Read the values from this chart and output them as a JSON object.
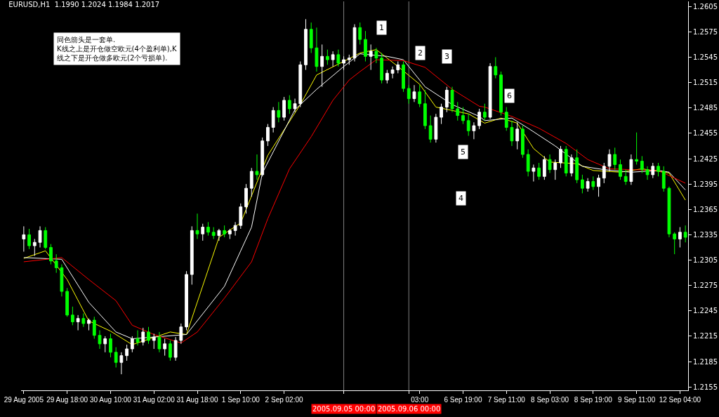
{
  "chart_data": {
    "type": "candlestick",
    "title": "EURUSD,H1  1.1990 1.2024 1.1984 1.2017",
    "categories": [
      "29 Aug 2005",
      null,
      null,
      null,
      null,
      null,
      null,
      null,
      "29 Aug 18:00",
      null,
      null,
      null,
      null,
      null,
      null,
      null,
      "30 Aug 10:00",
      null,
      null,
      null,
      null,
      null,
      null,
      null,
      "31 Aug 02:00",
      null,
      null,
      null,
      null,
      null,
      null,
      null,
      "31 Aug 18:00",
      null,
      null,
      null,
      null,
      null,
      null,
      null,
      "1 Sep 10:00",
      null,
      null,
      null,
      null,
      null,
      null,
      null,
      "2 Sep 02:00",
      null,
      null,
      null,
      null,
      null,
      null,
      null,
      null,
      null,
      null,
      "2005.09.05 00:00",
      null,
      null,
      null,
      null,
      null,
      null,
      null,
      null,
      null,
      null,
      null,
      "2005.09.06 00:00",
      null,
      "03:00",
      null,
      null,
      null,
      null,
      null,
      null,
      null,
      "6 Sep 19:00",
      null,
      null,
      null,
      null,
      null,
      null,
      null,
      "7 Sep 11:00",
      null,
      null,
      null,
      null,
      null,
      null,
      null,
      "8 Sep 03:00",
      null,
      null,
      null,
      null,
      null,
      null,
      null,
      "8 Sep 19:00",
      null,
      null,
      null,
      null,
      null,
      null,
      null,
      "9 Sep 11:00",
      null,
      null,
      null,
      null,
      null,
      null,
      null,
      "12 Sep 04:00",
      null
    ],
    "ohlc": [
      [
        1.233,
        1.2345,
        1.2315,
        1.2335
      ],
      [
        1.2335,
        1.2342,
        1.2318,
        1.2322
      ],
      [
        1.2322,
        1.233,
        1.231,
        1.2326
      ],
      [
        1.2326,
        1.2345,
        1.232,
        1.234
      ],
      [
        1.234,
        1.2344,
        1.2318,
        1.232
      ],
      [
        1.232,
        1.2324,
        1.23,
        1.2304
      ],
      [
        1.2304,
        1.2312,
        1.229,
        1.2296
      ],
      [
        1.2296,
        1.23,
        1.2262,
        1.2268
      ],
      [
        1.2268,
        1.2272,
        1.2238,
        1.224
      ],
      [
        1.224,
        1.225,
        1.2228,
        1.2232
      ],
      [
        1.2232,
        1.224,
        1.2222,
        1.2236
      ],
      [
        1.2236,
        1.2242,
        1.2226,
        1.223
      ],
      [
        1.223,
        1.2236,
        1.2222,
        1.2234
      ],
      [
        1.2234,
        1.2238,
        1.2212,
        1.2216
      ],
      [
        1.2216,
        1.2222,
        1.22,
        1.2206
      ],
      [
        1.2206,
        1.2215,
        1.2196,
        1.2212
      ],
      [
        1.2212,
        1.2218,
        1.219,
        1.2196
      ],
      [
        1.2196,
        1.2202,
        1.2178,
        1.2184
      ],
      [
        1.2184,
        1.2196,
        1.217,
        1.2192
      ],
      [
        1.2192,
        1.2205,
        1.2186,
        1.22
      ],
      [
        1.22,
        1.2215,
        1.2196,
        1.2212
      ],
      [
        1.2212,
        1.2222,
        1.2204,
        1.2208
      ],
      [
        1.2208,
        1.2225,
        1.2204,
        1.222
      ],
      [
        1.222,
        1.2226,
        1.2206,
        1.221
      ],
      [
        1.221,
        1.2218,
        1.22,
        1.2214
      ],
      [
        1.2214,
        1.222,
        1.2196,
        1.22
      ],
      [
        1.22,
        1.2212,
        1.2192,
        1.2206
      ],
      [
        1.2206,
        1.221,
        1.2186,
        1.219
      ],
      [
        1.219,
        1.2214,
        1.2186,
        1.221
      ],
      [
        1.221,
        1.223,
        1.2206,
        1.2226
      ],
      [
        1.2226,
        1.2292,
        1.2222,
        1.2288
      ],
      [
        1.2288,
        1.2345,
        1.2276,
        1.234
      ],
      [
        1.234,
        1.236,
        1.233,
        1.2336
      ],
      [
        1.2336,
        1.2348,
        1.2328,
        1.2344
      ],
      [
        1.2344,
        1.235,
        1.2334,
        1.2338
      ],
      [
        1.2338,
        1.2344,
        1.233,
        1.2334
      ],
      [
        1.2334,
        1.2342,
        1.2328,
        1.234
      ],
      [
        1.234,
        1.2346,
        1.2332,
        1.2336
      ],
      [
        1.2336,
        1.2342,
        1.233,
        1.234
      ],
      [
        1.234,
        1.235,
        1.2334,
        1.2346
      ],
      [
        1.2346,
        1.2372,
        1.2342,
        1.2368
      ],
      [
        1.2368,
        1.2395,
        1.236,
        1.239
      ],
      [
        1.239,
        1.2414,
        1.238,
        1.241
      ],
      [
        1.241,
        1.243,
        1.24,
        1.2406
      ],
      [
        1.2406,
        1.245,
        1.2404,
        1.2446
      ],
      [
        1.2446,
        1.2466,
        1.244,
        1.2462
      ],
      [
        1.2462,
        1.2486,
        1.2456,
        1.2482
      ],
      [
        1.2482,
        1.2492,
        1.2468,
        1.2474
      ],
      [
        1.2474,
        1.2498,
        1.247,
        1.2494
      ],
      [
        1.2494,
        1.25,
        1.2478,
        1.2484
      ],
      [
        1.2484,
        1.2496,
        1.248,
        1.249
      ],
      [
        1.249,
        1.254,
        1.2486,
        1.2536
      ],
      [
        1.2536,
        1.259,
        1.253,
        1.2578
      ],
      [
        1.2578,
        1.2586,
        1.255,
        1.2556
      ],
      [
        1.2556,
        1.258,
        1.2528,
        1.2534
      ],
      [
        1.2534,
        1.256,
        1.251,
        1.2546
      ],
      [
        1.2546,
        1.2554,
        1.2536,
        1.2542
      ],
      [
        1.2542,
        1.2552,
        1.2534,
        1.2548
      ],
      [
        1.2548,
        1.2554,
        1.2534,
        1.2538
      ],
      [
        1.2538,
        1.2546,
        1.253,
        1.2542
      ],
      [
        1.2542,
        1.2548,
        1.2536,
        1.2544
      ],
      [
        1.2544,
        1.2584,
        1.254,
        1.258
      ],
      [
        1.258,
        1.2586,
        1.256,
        1.2566
      ],
      [
        1.2566,
        1.2576,
        1.254,
        1.2546
      ],
      [
        1.2546,
        1.256,
        1.253,
        1.2552
      ],
      [
        1.2552,
        1.2556,
        1.2538,
        1.2544
      ],
      [
        1.2544,
        1.255,
        1.2514,
        1.2518
      ],
      [
        1.2518,
        1.253,
        1.2514,
        1.2526
      ],
      [
        1.2526,
        1.2534,
        1.252,
        1.253
      ],
      [
        1.253,
        1.254,
        1.2526,
        1.2536
      ],
      [
        1.2536,
        1.254,
        1.2504,
        1.2508
      ],
      [
        1.2508,
        1.2512,
        1.249,
        1.2496
      ],
      [
        1.2496,
        1.2512,
        1.2492,
        1.2504
      ],
      [
        1.2504,
        1.2512,
        1.2486,
        1.249
      ],
      [
        1.249,
        1.2506,
        1.246,
        1.2464
      ],
      [
        1.2464,
        1.2476,
        1.2444,
        1.2448
      ],
      [
        1.2448,
        1.2478,
        1.2444,
        1.2474
      ],
      [
        1.2474,
        1.249,
        1.2466,
        1.2486
      ],
      [
        1.2486,
        1.251,
        1.248,
        1.2506
      ],
      [
        1.2506,
        1.251,
        1.248,
        1.2484
      ],
      [
        1.2484,
        1.2492,
        1.247,
        1.2476
      ],
      [
        1.2476,
        1.2486,
        1.2466,
        1.247
      ],
      [
        1.247,
        1.2478,
        1.2452,
        1.2458
      ],
      [
        1.2458,
        1.2468,
        1.2448,
        1.2464
      ],
      [
        1.2464,
        1.2484,
        1.246,
        1.248
      ],
      [
        1.248,
        1.249,
        1.247,
        1.2474
      ],
      [
        1.2474,
        1.2538,
        1.2472,
        1.2534
      ],
      [
        1.2534,
        1.2545,
        1.252,
        1.2524
      ],
      [
        1.2524,
        1.2528,
        1.2476,
        1.248
      ],
      [
        1.248,
        1.2486,
        1.2458,
        1.2462
      ],
      [
        1.2462,
        1.247,
        1.244,
        1.2446
      ],
      [
        1.2446,
        1.2468,
        1.2436,
        1.246
      ],
      [
        1.246,
        1.2464,
        1.2426,
        1.243
      ],
      [
        1.243,
        1.2436,
        1.2404,
        1.241
      ],
      [
        1.241,
        1.2418,
        1.2398,
        1.2414
      ],
      [
        1.2414,
        1.242,
        1.24,
        1.2404
      ],
      [
        1.2404,
        1.2428,
        1.24,
        1.2424
      ],
      [
        1.2424,
        1.243,
        1.2408,
        1.2412
      ],
      [
        1.2412,
        1.2424,
        1.24,
        1.242
      ],
      [
        1.242,
        1.244,
        1.2414,
        1.2436
      ],
      [
        1.2436,
        1.244,
        1.2404,
        1.2408
      ],
      [
        1.2408,
        1.243,
        1.2404,
        1.2426
      ],
      [
        1.2426,
        1.2436,
        1.2396,
        1.24
      ],
      [
        1.24,
        1.2406,
        1.2384,
        1.239
      ],
      [
        1.239,
        1.2402,
        1.2386,
        1.2398
      ],
      [
        1.2398,
        1.2404,
        1.2388,
        1.2392
      ],
      [
        1.2392,
        1.2406,
        1.238,
        1.2402
      ],
      [
        1.2402,
        1.242,
        1.2396,
        1.2416
      ],
      [
        1.2416,
        1.2436,
        1.241,
        1.243
      ],
      [
        1.243,
        1.2438,
        1.2412,
        1.2418
      ],
      [
        1.2418,
        1.2424,
        1.24,
        1.2404
      ],
      [
        1.2404,
        1.2412,
        1.2394,
        1.2398
      ],
      [
        1.2398,
        1.243,
        1.2394,
        1.2424
      ],
      [
        1.2424,
        1.2456,
        1.2418,
        1.2422
      ],
      [
        1.2422,
        1.2428,
        1.2408,
        1.2412
      ],
      [
        1.2412,
        1.2416,
        1.24,
        1.2406
      ],
      [
        1.2406,
        1.242,
        1.2402,
        1.2416
      ],
      [
        1.2416,
        1.242,
        1.2404,
        1.241
      ],
      [
        1.241,
        1.2416,
        1.2386,
        1.239
      ],
      [
        1.239,
        1.2392,
        1.2332,
        1.2336
      ],
      [
        1.2336,
        1.2338,
        1.2312,
        1.233
      ],
      [
        1.233,
        1.2344,
        1.232,
        1.2338
      ],
      [
        1.2338,
        1.2346,
        1.2326,
        1.2332
      ]
    ],
    "colors": [
      "#ffffff",
      "#00ff00",
      "#ffffff",
      "#ffffff",
      "#00ff00",
      "#00ff00",
      "#00ff00",
      "#00ff00",
      "#00ff00",
      "#00ff00",
      "#ffffff",
      "#00ff00",
      "#ffffff",
      "#00ff00",
      "#00ff00",
      "#ffffff",
      "#00ff00",
      "#00ff00",
      "#ffffff",
      "#ffffff",
      "#ffffff",
      "#00ff00",
      "#ffffff",
      "#00ff00",
      "#ffffff",
      "#00ff00",
      "#ffffff",
      "#00ff00",
      "#ffffff",
      "#ffffff",
      "#ffffff",
      "#ffffff",
      "#00ff00",
      "#ffffff",
      "#00ff00",
      "#00ff00",
      "#ffffff",
      "#00ff00",
      "#ffffff",
      "#ffffff",
      "#ffffff",
      "#ffffff",
      "#ffffff",
      "#00ff00",
      "#ffffff",
      "#ffffff",
      "#ffffff",
      "#00ff00",
      "#ffffff",
      "#00ff00",
      "#ffffff",
      "#ffffff",
      "#ffffff",
      "#00ff00",
      "#00ff00",
      "#ffffff",
      "#00ff00",
      "#ffffff",
      "#00ff00",
      "#ffffff",
      "#ffffff",
      "#ffffff",
      "#00ff00",
      "#00ff00",
      "#ffffff",
      "#00ff00",
      "#00ff00",
      "#ffffff",
      "#ffffff",
      "#ffffff",
      "#00ff00",
      "#00ff00",
      "#ffffff",
      "#00ff00",
      "#00ff00",
      "#00ff00",
      "#ffffff",
      "#ffffff",
      "#ffffff",
      "#00ff00",
      "#00ff00",
      "#00ff00",
      "#00ff00",
      "#ffffff",
      "#ffffff",
      "#00ff00",
      "#ffffff",
      "#00ff00",
      "#00ff00",
      "#00ff00",
      "#00ff00",
      "#ffffff",
      "#00ff00",
      "#00ff00",
      "#ffffff",
      "#00ff00",
      "#ffffff",
      "#00ff00",
      "#ffffff",
      "#ffffff",
      "#00ff00",
      "#ffffff",
      "#00ff00",
      "#00ff00",
      "#ffffff",
      "#00ff00",
      "#ffffff",
      "#ffffff",
      "#ffffff",
      "#00ff00",
      "#00ff00",
      "#00ff00",
      "#ffffff",
      "#00ff00",
      "#00ff00",
      "#00ff00",
      "#ffffff",
      "#00ff00",
      "#00ff00",
      "#00ff00",
      "#00ff00",
      "#ffffff",
      "#00ff00"
    ],
    "series": [
      {
        "type": "line",
        "color": "#ffff00",
        "values": [
          1.2307,
          null,
          null,
          null,
          1.2316,
          null,
          null,
          null,
          1.2282,
          null,
          null,
          null,
          1.2233,
          null,
          null,
          null,
          1.2221,
          null,
          null,
          null,
          1.2205,
          null,
          null,
          null,
          null,
          null,
          null,
          1.222,
          null,
          null,
          1.2217,
          null,
          null,
          null,
          null,
          null,
          1.2332,
          null,
          null,
          null,
          1.2349,
          null,
          null,
          null,
          null,
          1.2429,
          null,
          null,
          null,
          null,
          null,
          1.2489,
          null,
          null,
          1.2524,
          null,
          null,
          null,
          null,
          1.254,
          null,
          null,
          1.255,
          null,
          null,
          1.2554,
          null,
          null,
          null,
          1.2534,
          null,
          null,
          null,
          1.2513,
          null,
          null,
          1.2486,
          null,
          null,
          null,
          null,
          null,
          1.2478,
          null,
          null,
          1.2467,
          null,
          null,
          1.2473,
          null,
          null,
          1.2467,
          null,
          null,
          1.2437,
          null,
          null,
          1.2421,
          null,
          null,
          null,
          null,
          1.2419,
          null,
          null,
          1.2411,
          null,
          null,
          null,
          null,
          1.2409,
          null,
          null,
          null,
          1.2413,
          null,
          null,
          null,
          null,
          1.2408,
          null,
          null,
          1.2376
        ]
      },
      {
        "type": "line",
        "color": "#ffffff",
        "values": [
          1.2308,
          null,
          null,
          null,
          null,
          null,
          null,
          1.2306,
          null,
          null,
          null,
          null,
          1.2255,
          null,
          null,
          null,
          null,
          1.222,
          null,
          null,
          1.2212,
          null,
          null,
          null,
          null,
          null,
          null,
          null,
          null,
          null,
          1.2217,
          null,
          null,
          null,
          null,
          null,
          null,
          1.2274,
          null,
          null,
          null,
          null,
          1.2344,
          null,
          1.2408,
          null,
          null,
          null,
          null,
          null,
          1.2483,
          null,
          null,
          null,
          1.2507,
          null,
          null,
          null,
          null,
          1.2534,
          null,
          null,
          1.2549,
          null,
          null,
          null,
          null,
          1.2546,
          null,
          null,
          1.2542,
          null,
          null,
          null,
          1.251,
          null,
          null,
          null,
          null,
          1.2489,
          null,
          null,
          null,
          null,
          1.2475,
          1.247,
          null,
          null,
          null,
          null,
          1.2473,
          null,
          null,
          1.2461,
          null,
          null,
          null,
          null,
          1.244,
          null,
          null,
          null,
          null,
          1.2416,
          null,
          null,
          null,
          1.2412,
          null,
          null,
          null,
          null,
          1.2409,
          null,
          null,
          null,
          null,
          1.2411,
          null,
          1.2409,
          null,
          null,
          1.2388
        ]
      },
      {
        "type": "line",
        "color": "#ff0000",
        "values": [
          1.2303,
          null,
          null,
          null,
          null,
          null,
          null,
          1.2308,
          null,
          null,
          null,
          null,
          1.2282,
          null,
          null,
          null,
          null,
          1.2257,
          null,
          null,
          1.2228,
          null,
          null,
          null,
          1.2217,
          null,
          null,
          null,
          null,
          1.2207,
          null,
          null,
          1.222,
          null,
          null,
          null,
          null,
          1.226,
          null,
          null,
          null,
          null,
          1.2303,
          null,
          null,
          1.2354,
          null,
          null,
          null,
          1.2413,
          null,
          null,
          null,
          1.2451,
          null,
          null,
          null,
          1.2494,
          null,
          null,
          1.2518,
          null,
          1.2528,
          null,
          null,
          1.2542,
          null,
          null,
          null,
          null,
          1.2541,
          null,
          null,
          null,
          1.2533,
          null,
          null,
          null,
          null,
          1.2507,
          null,
          null,
          null,
          null,
          1.2487,
          1.2486,
          null,
          null,
          null,
          null,
          1.2475,
          null,
          null,
          null,
          null,
          1.2461,
          null,
          null,
          null,
          null,
          1.2443,
          null,
          null,
          null,
          1.2424,
          null,
          null,
          null,
          1.2413,
          null,
          null,
          null,
          1.2412,
          null,
          null,
          null,
          null,
          1.2411,
          null,
          null,
          null,
          null,
          1.2396
        ]
      }
    ],
    "ylim": [
      1.2151,
      1.2611
    ],
    "yticks": [
      1.2155,
      1.2185,
      1.2215,
      1.2245,
      1.2275,
      1.2305,
      1.2335,
      1.2365,
      1.2395,
      1.2425,
      1.2455,
      1.2485,
      1.2515,
      1.2545,
      1.2575,
      1.2605
    ],
    "ref_lines": [
      {
        "axis": "x",
        "value": "2005.09.05 00:00",
        "color": "#808080"
      },
      {
        "axis": "x",
        "value": "2005.09.06 00:00",
        "color": "#808080"
      }
    ],
    "annotations": [
      "同色箭头是一套单.\nK线之上是开仓做空欧元(4个盈利单),K\n线之下是开仓做多欧元(2个亏损单).",
      {
        "text": "1",
        "y": 1.258
      },
      {
        "text": "2",
        "y": 1.255
      },
      {
        "text": "3",
        "y": 1.2546
      },
      {
        "text": "4",
        "y": 1.2378
      },
      {
        "text": "5",
        "y": 1.2433
      },
      {
        "text": "6",
        "y": 1.2499
      }
    ],
    "grid": false
  }
}
